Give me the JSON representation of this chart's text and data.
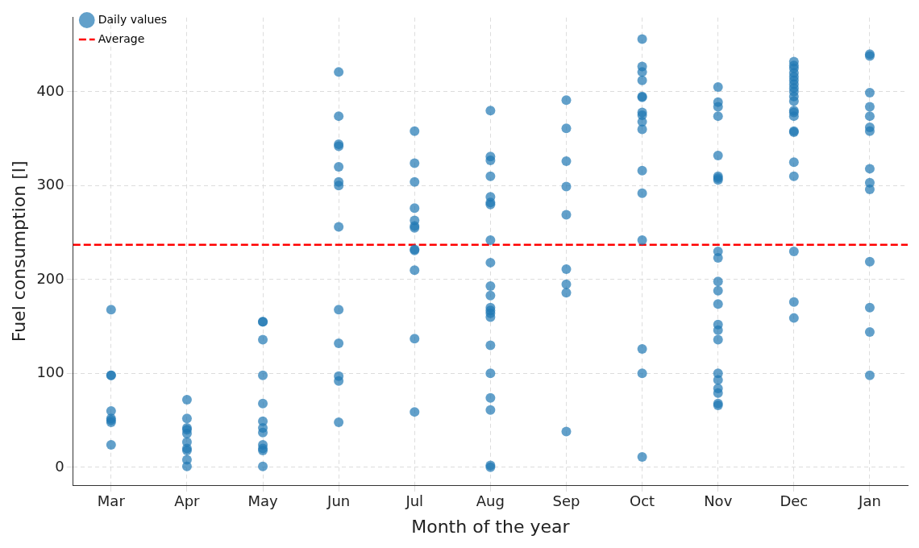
{
  "chart_data": {
    "type": "scatter",
    "xlabel": "Month of the year",
    "ylabel": "Fuel consumption [l]",
    "categories": [
      "Mar",
      "Apr",
      "May",
      "Jun",
      "Jul",
      "Aug",
      "Sep",
      "Oct",
      "Nov",
      "Dec",
      "Jan"
    ],
    "series": [
      {
        "name": "Daily values",
        "color": "#1f77b4",
        "marker": "circle",
        "x": [
          "Mar",
          "Mar",
          "Mar",
          "Mar",
          "Mar",
          "Mar",
          "Mar",
          "Mar",
          "Apr",
          "Apr",
          "Apr",
          "Apr",
          "Apr",
          "Apr",
          "Apr",
          "Apr",
          "Apr",
          "Apr",
          "May",
          "May",
          "May",
          "May",
          "May",
          "May",
          "May",
          "May",
          "May",
          "May",
          "May",
          "May",
          "Jun",
          "Jun",
          "Jun",
          "Jun",
          "Jun",
          "Jun",
          "Jun",
          "Jun",
          "Jun",
          "Jun",
          "Jun",
          "Jun",
          "Jun",
          "Jul",
          "Jul",
          "Jul",
          "Jul",
          "Jul",
          "Jul",
          "Jul",
          "Jul",
          "Jul",
          "Jul",
          "Jul",
          "Jul",
          "Aug",
          "Aug",
          "Aug",
          "Aug",
          "Aug",
          "Aug",
          "Aug",
          "Aug",
          "Aug",
          "Aug",
          "Aug",
          "Aug",
          "Aug",
          "Aug",
          "Aug",
          "Aug",
          "Aug",
          "Aug",
          "Aug",
          "Aug",
          "Aug",
          "Sep",
          "Sep",
          "Sep",
          "Sep",
          "Sep",
          "Sep",
          "Sep",
          "Sep",
          "Sep",
          "Oct",
          "Oct",
          "Oct",
          "Oct",
          "Oct",
          "Oct",
          "Oct",
          "Oct",
          "Oct",
          "Oct",
          "Oct",
          "Oct",
          "Oct",
          "Oct",
          "Oct",
          "Oct",
          "Nov",
          "Nov",
          "Nov",
          "Nov",
          "Nov",
          "Nov",
          "Nov",
          "Nov",
          "Nov",
          "Nov",
          "Nov",
          "Nov",
          "Nov",
          "Nov",
          "Nov",
          "Nov",
          "Nov",
          "Nov",
          "Nov",
          "Nov",
          "Nov",
          "Nov",
          "Dec",
          "Dec",
          "Dec",
          "Dec",
          "Dec",
          "Dec",
          "Dec",
          "Dec",
          "Dec",
          "Dec",
          "Dec",
          "Dec",
          "Dec",
          "Dec",
          "Dec",
          "Dec",
          "Dec",
          "Dec",
          "Dec",
          "Dec",
          "Dec",
          "Jan",
          "Jan",
          "Jan",
          "Jan",
          "Jan",
          "Jan",
          "Jan",
          "Jan",
          "Jan",
          "Jan",
          "Jan",
          "Jan",
          "Jan",
          "Jan"
        ],
        "values": [
          168,
          98,
          98,
          60,
          52,
          50,
          48,
          24,
          72,
          52,
          42,
          40,
          36,
          27,
          20,
          18,
          8,
          1,
          155,
          155,
          136,
          98,
          68,
          49,
          42,
          37,
          24,
          20,
          18,
          1,
          421,
          374,
          344,
          342,
          320,
          304,
          300,
          256,
          168,
          132,
          97,
          92,
          48,
          358,
          324,
          304,
          276,
          263,
          257,
          255,
          232,
          231,
          210,
          137,
          59,
          380,
          331,
          327,
          310,
          288,
          282,
          280,
          242,
          218,
          193,
          183,
          170,
          167,
          164,
          160,
          130,
          100,
          74,
          61,
          2,
          0,
          391,
          361,
          326,
          299,
          269,
          211,
          195,
          186,
          38,
          456,
          427,
          421,
          412,
          395,
          394,
          378,
          375,
          368,
          360,
          316,
          292,
          242,
          126,
          100,
          11,
          405,
          389,
          384,
          374,
          332,
          310,
          308,
          306,
          230,
          223,
          198,
          188,
          174,
          152,
          146,
          136,
          100,
          93,
          84,
          79,
          68,
          66,
          432,
          428,
          425,
          420,
          416,
          412,
          408,
          404,
          400,
          395,
          390,
          380,
          378,
          374,
          358,
          357,
          325,
          310,
          230,
          176,
          159,
          440,
          438,
          399,
          384,
          374,
          362,
          358,
          318,
          303,
          296,
          219,
          170,
          144,
          98
        ]
      }
    ],
    "ref_lines": [
      {
        "axis": "y",
        "value": 237,
        "label": "Average",
        "color": "#ff0000",
        "line_style": "dashed"
      }
    ],
    "ylim": [
      -19,
      479
    ],
    "yticks": [
      0,
      100,
      200,
      300,
      400
    ],
    "grid": true,
    "legend": "top left"
  }
}
